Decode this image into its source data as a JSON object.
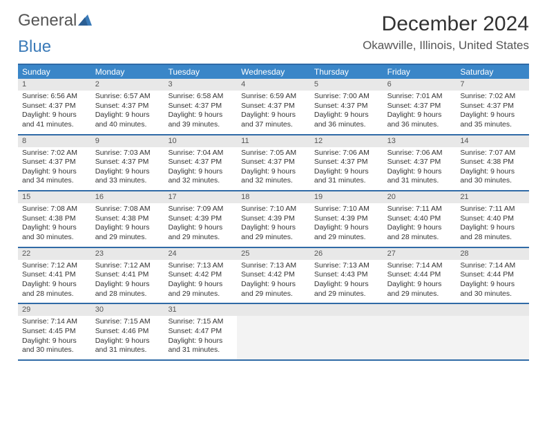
{
  "brand": {
    "part1": "General",
    "part2": "Blue"
  },
  "title": "December 2024",
  "location": "Okawville, Illinois, United States",
  "colors": {
    "header_bg": "#3a86c8",
    "header_text": "#ffffff",
    "rule": "#2f6aa6",
    "daynum_bg": "#e8e8e8",
    "empty_bg": "#f3f3f3",
    "text": "#333333",
    "brand_accent": "#3a7ab8"
  },
  "day_headers": [
    "Sunday",
    "Monday",
    "Tuesday",
    "Wednesday",
    "Thursday",
    "Friday",
    "Saturday"
  ],
  "weeks": [
    [
      {
        "n": "1",
        "sr": "6:56 AM",
        "ss": "4:37 PM",
        "dl": "9 hours and 41 minutes."
      },
      {
        "n": "2",
        "sr": "6:57 AM",
        "ss": "4:37 PM",
        "dl": "9 hours and 40 minutes."
      },
      {
        "n": "3",
        "sr": "6:58 AM",
        "ss": "4:37 PM",
        "dl": "9 hours and 39 minutes."
      },
      {
        "n": "4",
        "sr": "6:59 AM",
        "ss": "4:37 PM",
        "dl": "9 hours and 37 minutes."
      },
      {
        "n": "5",
        "sr": "7:00 AM",
        "ss": "4:37 PM",
        "dl": "9 hours and 36 minutes."
      },
      {
        "n": "6",
        "sr": "7:01 AM",
        "ss": "4:37 PM",
        "dl": "9 hours and 36 minutes."
      },
      {
        "n": "7",
        "sr": "7:02 AM",
        "ss": "4:37 PM",
        "dl": "9 hours and 35 minutes."
      }
    ],
    [
      {
        "n": "8",
        "sr": "7:02 AM",
        "ss": "4:37 PM",
        "dl": "9 hours and 34 minutes."
      },
      {
        "n": "9",
        "sr": "7:03 AM",
        "ss": "4:37 PM",
        "dl": "9 hours and 33 minutes."
      },
      {
        "n": "10",
        "sr": "7:04 AM",
        "ss": "4:37 PM",
        "dl": "9 hours and 32 minutes."
      },
      {
        "n": "11",
        "sr": "7:05 AM",
        "ss": "4:37 PM",
        "dl": "9 hours and 32 minutes."
      },
      {
        "n": "12",
        "sr": "7:06 AM",
        "ss": "4:37 PM",
        "dl": "9 hours and 31 minutes."
      },
      {
        "n": "13",
        "sr": "7:06 AM",
        "ss": "4:37 PM",
        "dl": "9 hours and 31 minutes."
      },
      {
        "n": "14",
        "sr": "7:07 AM",
        "ss": "4:38 PM",
        "dl": "9 hours and 30 minutes."
      }
    ],
    [
      {
        "n": "15",
        "sr": "7:08 AM",
        "ss": "4:38 PM",
        "dl": "9 hours and 30 minutes."
      },
      {
        "n": "16",
        "sr": "7:08 AM",
        "ss": "4:38 PM",
        "dl": "9 hours and 29 minutes."
      },
      {
        "n": "17",
        "sr": "7:09 AM",
        "ss": "4:39 PM",
        "dl": "9 hours and 29 minutes."
      },
      {
        "n": "18",
        "sr": "7:10 AM",
        "ss": "4:39 PM",
        "dl": "9 hours and 29 minutes."
      },
      {
        "n": "19",
        "sr": "7:10 AM",
        "ss": "4:39 PM",
        "dl": "9 hours and 29 minutes."
      },
      {
        "n": "20",
        "sr": "7:11 AM",
        "ss": "4:40 PM",
        "dl": "9 hours and 28 minutes."
      },
      {
        "n": "21",
        "sr": "7:11 AM",
        "ss": "4:40 PM",
        "dl": "9 hours and 28 minutes."
      }
    ],
    [
      {
        "n": "22",
        "sr": "7:12 AM",
        "ss": "4:41 PM",
        "dl": "9 hours and 28 minutes."
      },
      {
        "n": "23",
        "sr": "7:12 AM",
        "ss": "4:41 PM",
        "dl": "9 hours and 28 minutes."
      },
      {
        "n": "24",
        "sr": "7:13 AM",
        "ss": "4:42 PM",
        "dl": "9 hours and 29 minutes."
      },
      {
        "n": "25",
        "sr": "7:13 AM",
        "ss": "4:42 PM",
        "dl": "9 hours and 29 minutes."
      },
      {
        "n": "26",
        "sr": "7:13 AM",
        "ss": "4:43 PM",
        "dl": "9 hours and 29 minutes."
      },
      {
        "n": "27",
        "sr": "7:14 AM",
        "ss": "4:44 PM",
        "dl": "9 hours and 29 minutes."
      },
      {
        "n": "28",
        "sr": "7:14 AM",
        "ss": "4:44 PM",
        "dl": "9 hours and 30 minutes."
      }
    ],
    [
      {
        "n": "29",
        "sr": "7:14 AM",
        "ss": "4:45 PM",
        "dl": "9 hours and 30 minutes."
      },
      {
        "n": "30",
        "sr": "7:15 AM",
        "ss": "4:46 PM",
        "dl": "9 hours and 31 minutes."
      },
      {
        "n": "31",
        "sr": "7:15 AM",
        "ss": "4:47 PM",
        "dl": "9 hours and 31 minutes."
      },
      {
        "empty": true
      },
      {
        "empty": true
      },
      {
        "empty": true
      },
      {
        "empty": true
      }
    ]
  ],
  "labels": {
    "sunrise": "Sunrise:",
    "sunset": "Sunset:",
    "daylight": "Daylight:"
  }
}
